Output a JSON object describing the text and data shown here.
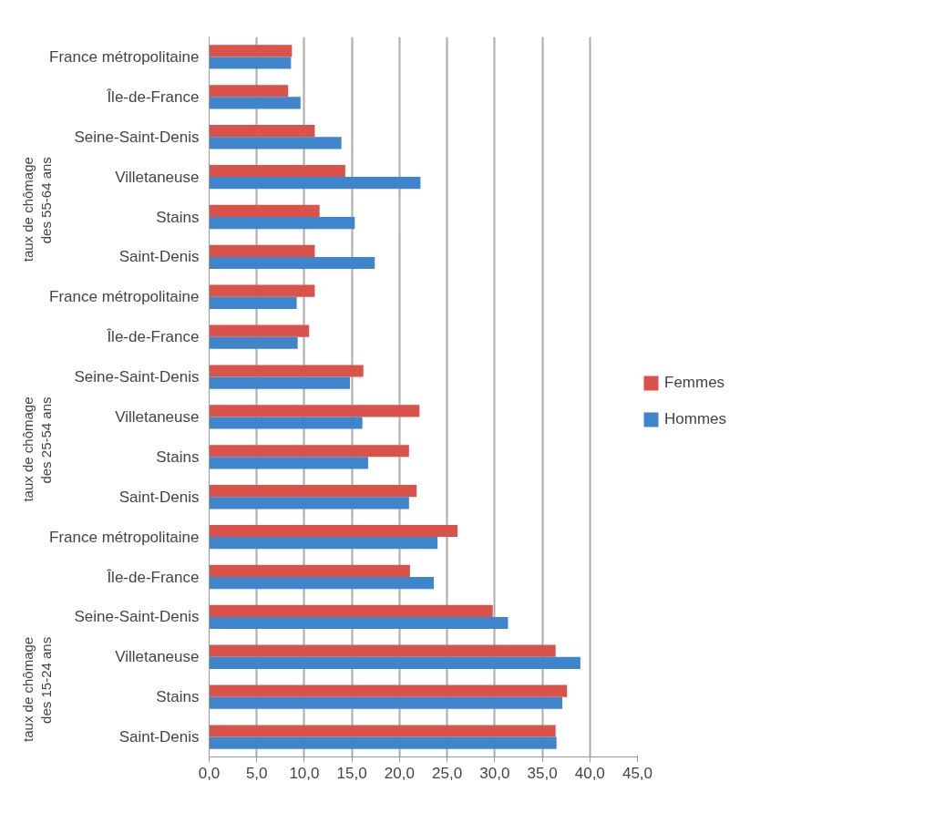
{
  "chart_data": {
    "type": "bar",
    "orientation": "horizontal",
    "categories": [
      "France métropolitaine",
      "Île-de-France",
      "Seine-Saint-Denis",
      "Villetaneuse",
      "Stains",
      "Saint-Denis",
      "France métropolitaine",
      "Île-de-France",
      "Seine-Saint-Denis",
      "Villetaneuse",
      "Stains",
      "Saint-Denis",
      "France métropolitaine",
      "Île-de-France",
      "Seine-Saint-Denis",
      "Villetaneuse",
      "Stains",
      "Saint-Denis"
    ],
    "series": [
      {
        "name": "Femmes",
        "color": "#d9534a",
        "values": [
          8.7,
          8.3,
          11.1,
          14.3,
          11.6,
          11.1,
          11.1,
          10.5,
          16.2,
          22.1,
          21.0,
          21.8,
          26.1,
          21.1,
          29.8,
          36.4,
          37.6,
          36.4
        ]
      },
      {
        "name": "Hommes",
        "color": "#3f85cc",
        "values": [
          8.6,
          9.6,
          13.9,
          22.2,
          15.3,
          17.4,
          9.2,
          9.3,
          14.8,
          16.1,
          16.7,
          21.0,
          24.0,
          23.6,
          31.4,
          39.0,
          37.1,
          36.5
        ]
      }
    ],
    "annotations": [
      "taux de chômage des 55-64 ans",
      "taux de chômage des 25-54 ans",
      "taux de chômage des 15-24 ans"
    ],
    "xlim": [
      0,
      45
    ],
    "xticks": [
      {
        "value": 0,
        "label": "0,0"
      },
      {
        "value": 5,
        "label": "5,0"
      },
      {
        "value": 10,
        "label": "10,0"
      },
      {
        "value": 15,
        "label": "15,0"
      },
      {
        "value": 20,
        "label": "20,0"
      },
      {
        "value": 25,
        "label": "25,0"
      },
      {
        "value": 30,
        "label": "30,0"
      },
      {
        "value": 35,
        "label": "35,0"
      },
      {
        "value": 40,
        "label": "40,0"
      },
      {
        "value": 45,
        "label": "45,0"
      }
    ],
    "grid": "x",
    "legend": "right"
  }
}
